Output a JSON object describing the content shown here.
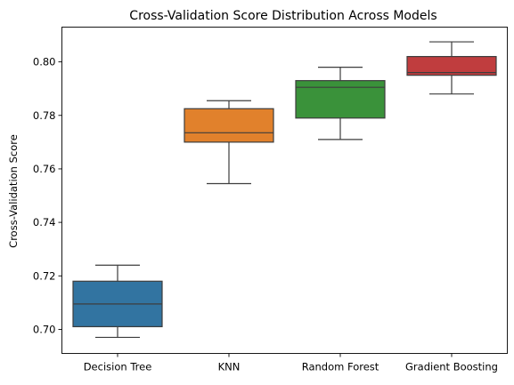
{
  "chart_data": {
    "type": "box",
    "title": "Cross-Validation Score Distribution Across Models",
    "xlabel": "",
    "ylabel": "Cross-Validation Score",
    "ylim": [
      0.691,
      0.813
    ],
    "yticks": [
      0.7,
      0.72,
      0.74,
      0.76,
      0.78,
      0.8
    ],
    "ytick_labels": [
      "0.70",
      "0.72",
      "0.74",
      "0.76",
      "0.78",
      "0.80"
    ],
    "grid": false,
    "legend": "none",
    "categories": [
      "Decision Tree",
      "KNN",
      "Random Forest",
      "Gradient Boosting"
    ],
    "series": [
      {
        "category": "Decision Tree",
        "color": "#3274a1",
        "whisker_low": 0.697,
        "q1": 0.701,
        "median": 0.7095,
        "q3": 0.718,
        "whisker_high": 0.724
      },
      {
        "category": "KNN",
        "color": "#e1812c",
        "whisker_low": 0.7545,
        "q1": 0.77,
        "median": 0.7735,
        "q3": 0.7825,
        "whisker_high": 0.7855
      },
      {
        "category": "Random Forest",
        "color": "#3a923a",
        "whisker_low": 0.771,
        "q1": 0.779,
        "median": 0.7905,
        "q3": 0.793,
        "whisker_high": 0.798
      },
      {
        "category": "Gradient Boosting",
        "color": "#c03d3e",
        "whisker_low": 0.788,
        "q1": 0.795,
        "median": 0.796,
        "q3": 0.802,
        "whisker_high": 0.8075
      }
    ]
  }
}
